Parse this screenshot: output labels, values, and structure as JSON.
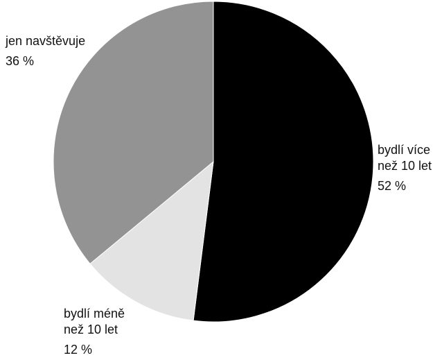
{
  "chart_data": {
    "type": "pie",
    "slices": [
      {
        "label_lines": [
          "bydlí více",
          "než 10 let"
        ],
        "value_text": "52 %",
        "value": 52,
        "color": "#000000"
      },
      {
        "label_lines": [
          "bydlí méně",
          "než 10 let"
        ],
        "value_text": "12 %",
        "value": 12,
        "color": "#e3e3e3"
      },
      {
        "label_lines": [
          "jen navštěvuje"
        ],
        "value_text": "36 %",
        "value": 36,
        "color": "#939393"
      }
    ],
    "start_angle_deg": 0,
    "direction": "clockwise",
    "slice_border_color": "#ffffff",
    "legend": "none"
  }
}
